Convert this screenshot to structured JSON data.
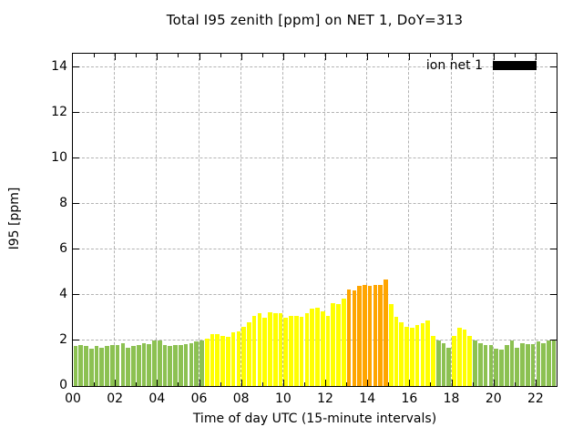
{
  "chart_data": {
    "type": "bar",
    "title": "Total I95 zenith [ppm] on NET 1, DoY=313",
    "xlabel": "Time of day UTC (15-minute intervals)",
    "ylabel": "I95 [ppm]",
    "ylim": [
      0,
      14.6
    ],
    "yticks": [
      0,
      2,
      4,
      6,
      8,
      10,
      12,
      14
    ],
    "xticks": [
      {
        "label": "00",
        "hour": 0
      },
      {
        "label": "02",
        "hour": 2
      },
      {
        "label": "04",
        "hour": 4
      },
      {
        "label": "06",
        "hour": 6
      },
      {
        "label": "08",
        "hour": 8
      },
      {
        "label": "10",
        "hour": 10
      },
      {
        "label": "12",
        "hour": 12
      },
      {
        "label": "14",
        "hour": 14
      },
      {
        "label": "16",
        "hour": 16
      },
      {
        "label": "18",
        "hour": 18
      },
      {
        "label": "20",
        "hour": 20
      },
      {
        "label": "22",
        "hour": 22
      }
    ],
    "x_hours_span": 23,
    "interval_minutes": 15,
    "grid": true,
    "legend": {
      "label": "ion net 1",
      "position": "top-right",
      "swatch_color": "#000000"
    },
    "thresholds": {
      "green_max": 2.0,
      "yellow_max": 4.0
    },
    "colors": {
      "green": "#8cc152",
      "yellow": "#ffff00",
      "orange": "#ffa500",
      "grid": "#b3b3b3",
      "frame": "#000000"
    },
    "series": [
      {
        "name": "ion net 1",
        "start_time": "00:00",
        "values": [
          1.75,
          1.8,
          1.75,
          1.65,
          1.75,
          1.7,
          1.75,
          1.8,
          1.8,
          1.9,
          1.7,
          1.75,
          1.8,
          1.9,
          1.85,
          2.0,
          2.0,
          1.8,
          1.75,
          1.8,
          1.8,
          1.85,
          1.9,
          1.95,
          2.0,
          2.1,
          2.3,
          2.3,
          2.2,
          2.15,
          2.35,
          2.4,
          2.6,
          2.8,
          3.1,
          3.2,
          3.0,
          3.25,
          3.2,
          3.2,
          3.0,
          3.1,
          3.1,
          3.05,
          3.2,
          3.4,
          3.45,
          3.3,
          3.1,
          3.65,
          3.6,
          3.85,
          4.25,
          4.2,
          4.4,
          4.45,
          4.4,
          4.45,
          4.45,
          4.7,
          3.6,
          3.05,
          2.8,
          2.6,
          2.55,
          2.7,
          2.75,
          2.9,
          2.2,
          2.0,
          1.9,
          1.7,
          2.2,
          2.55,
          2.5,
          2.2,
          2.0,
          1.9,
          1.8,
          1.8,
          1.65,
          1.6,
          1.8,
          2.0,
          1.7,
          1.9,
          1.85,
          1.85,
          1.95,
          1.9,
          2.0,
          2.0
        ]
      }
    ]
  }
}
